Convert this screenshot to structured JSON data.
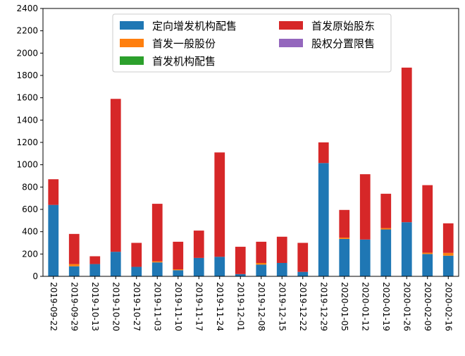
{
  "chart_data": {
    "type": "bar",
    "stacked": true,
    "title": "",
    "xlabel": "",
    "ylabel": "",
    "ylim": [
      0,
      2400
    ],
    "yticks": [
      0,
      200,
      400,
      600,
      800,
      1000,
      1200,
      1400,
      1600,
      1800,
      2000,
      2200,
      2400
    ],
    "grid": false,
    "legend_position": "top-center",
    "categories": [
      "2019-09-22",
      "2019-09-29",
      "2019-10-13",
      "2019-10-20",
      "2019-10-27",
      "2019-11-03",
      "2019-11-10",
      "2019-11-17",
      "2019-11-24",
      "2019-12-01",
      "2019-12-08",
      "2019-12-15",
      "2019-12-22",
      "2019-12-29",
      "2020-01-05",
      "2020-01-12",
      "2020-01-19",
      "2020-01-26",
      "2020-02-09",
      "2020-02-16"
    ],
    "series": [
      {
        "name": "定向增发机构配售",
        "color": "#1f77b4",
        "values": [
          640,
          90,
          110,
          220,
          85,
          125,
          55,
          165,
          175,
          20,
          105,
          120,
          40,
          1015,
          335,
          330,
          420,
          485,
          200,
          185
        ]
      },
      {
        "name": "首发一般股份",
        "color": "#ff7f0e",
        "values": [
          0,
          20,
          0,
          0,
          0,
          10,
          8,
          0,
          0,
          0,
          15,
          0,
          0,
          0,
          12,
          0,
          12,
          0,
          12,
          25
        ]
      },
      {
        "name": "首发机构配售",
        "color": "#2ca02c",
        "values": [
          0,
          0,
          0,
          0,
          0,
          0,
          0,
          0,
          0,
          0,
          0,
          0,
          0,
          0,
          0,
          0,
          0,
          0,
          0,
          0
        ]
      },
      {
        "name": "首发原始股东",
        "color": "#d62728",
        "values": [
          230,
          270,
          70,
          1370,
          215,
          515,
          247,
          245,
          935,
          245,
          190,
          235,
          260,
          185,
          248,
          585,
          308,
          1385,
          605,
          265
        ]
      },
      {
        "name": "股权分置限售",
        "color": "#9467bd",
        "values": [
          0,
          0,
          0,
          0,
          0,
          0,
          0,
          0,
          0,
          0,
          0,
          0,
          0,
          0,
          0,
          0,
          0,
          0,
          0,
          0
        ]
      }
    ]
  }
}
